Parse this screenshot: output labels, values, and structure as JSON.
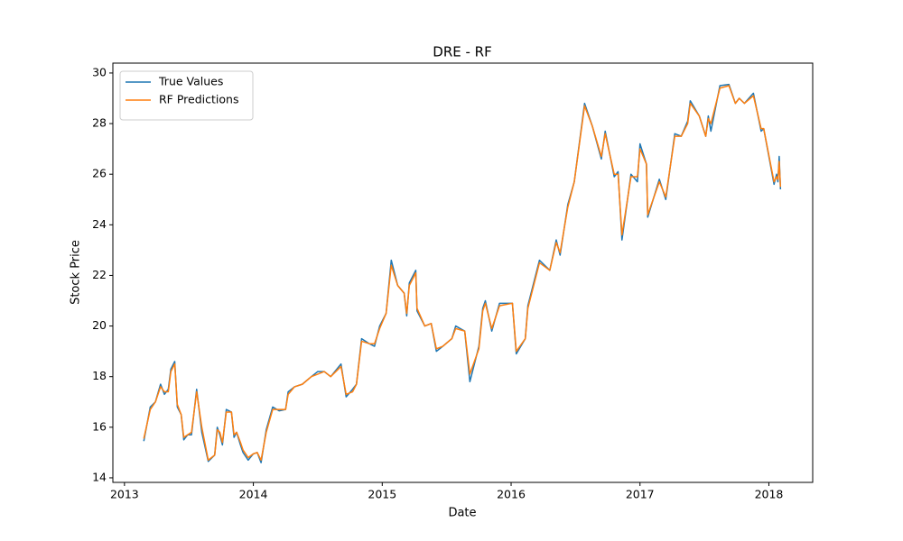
{
  "chart_data": {
    "type": "line",
    "title": "DRE - RF",
    "x_label": "Date",
    "y_label": "Stock Price",
    "x": [
      2013.15,
      2013.2,
      2013.24,
      2013.28,
      2013.31,
      2013.34,
      2013.36,
      2013.39,
      2013.41,
      2013.44,
      2013.46,
      2013.49,
      2013.52,
      2013.56,
      2013.6,
      2013.65,
      2013.7,
      2013.72,
      2013.74,
      2013.76,
      2013.79,
      2013.83,
      2013.85,
      2013.87,
      2013.9,
      2013.92,
      2013.96,
      2014.0,
      2014.03,
      2014.06,
      2014.1,
      2014.15,
      2014.2,
      2014.25,
      2014.27,
      2014.32,
      2014.38,
      2014.45,
      2014.5,
      2014.55,
      2014.6,
      2014.68,
      2014.72,
      2014.77,
      2014.8,
      2014.84,
      2014.9,
      2014.94,
      2014.98,
      2015.03,
      2015.07,
      2015.12,
      2015.17,
      2015.19,
      2015.21,
      2015.26,
      2015.27,
      2015.33,
      2015.38,
      2015.42,
      2015.47,
      2015.54,
      2015.57,
      2015.64,
      2015.68,
      2015.75,
      2015.78,
      2015.8,
      2015.85,
      2015.91,
      2016.01,
      2016.04,
      2016.11,
      2016.13,
      2016.22,
      2016.3,
      2016.35,
      2016.38,
      2016.44,
      2016.49,
      2016.57,
      2016.63,
      2016.7,
      2016.73,
      2016.8,
      2016.83,
      2016.86,
      2016.93,
      2016.98,
      2017.0,
      2017.05,
      2017.06,
      2017.15,
      2017.2,
      2017.27,
      2017.32,
      2017.37,
      2017.39,
      2017.46,
      2017.51,
      2017.53,
      2017.55,
      2017.62,
      2017.69,
      2017.74,
      2017.77,
      2017.81,
      2017.88,
      2017.94,
      2017.96,
      2018.04,
      2018.06,
      2018.07,
      2018.08,
      2018.09
    ],
    "series": [
      {
        "name": "True Values",
        "color": "#1f77b4",
        "values": [
          15.45,
          16.8,
          17.0,
          17.7,
          17.3,
          17.5,
          18.3,
          18.6,
          16.8,
          16.5,
          15.5,
          15.7,
          15.7,
          17.5,
          15.8,
          14.65,
          14.9,
          16.0,
          15.7,
          15.3,
          16.7,
          16.6,
          15.6,
          15.8,
          15.3,
          15.0,
          14.7,
          14.95,
          15.0,
          14.6,
          15.9,
          16.8,
          16.65,
          16.7,
          17.4,
          17.6,
          17.7,
          18.0,
          18.2,
          18.2,
          18.0,
          18.5,
          17.2,
          17.5,
          17.7,
          19.5,
          19.3,
          19.2,
          20.0,
          20.5,
          22.6,
          21.6,
          21.3,
          20.4,
          21.7,
          22.2,
          20.6,
          20.0,
          20.1,
          19.0,
          19.2,
          19.5,
          20.0,
          19.8,
          17.8,
          19.2,
          20.7,
          21.0,
          19.8,
          20.9,
          20.9,
          18.9,
          19.5,
          20.8,
          22.6,
          22.2,
          23.4,
          22.8,
          24.8,
          25.7,
          28.8,
          27.9,
          26.6,
          27.7,
          25.9,
          26.1,
          23.4,
          26.0,
          25.7,
          27.2,
          26.4,
          24.3,
          25.8,
          25.0,
          27.6,
          27.5,
          28.1,
          28.9,
          28.3,
          27.5,
          28.3,
          27.7,
          29.5,
          29.55,
          28.8,
          29.0,
          28.8,
          29.2,
          27.7,
          27.8,
          25.6,
          26.0,
          25.7,
          26.7,
          25.4
        ]
      },
      {
        "name": "RF Predictions",
        "color": "#ff7f0e",
        "values": [
          15.55,
          16.7,
          17.0,
          17.6,
          17.4,
          17.4,
          18.2,
          18.5,
          16.9,
          16.5,
          15.6,
          15.7,
          15.8,
          17.4,
          16.0,
          14.7,
          14.9,
          15.9,
          15.8,
          15.4,
          16.6,
          16.6,
          15.7,
          15.8,
          15.4,
          15.1,
          14.8,
          14.95,
          15.0,
          14.7,
          15.8,
          16.7,
          16.7,
          16.7,
          17.3,
          17.6,
          17.7,
          18.0,
          18.1,
          18.2,
          18.0,
          18.4,
          17.3,
          17.4,
          17.7,
          19.4,
          19.3,
          19.3,
          19.9,
          20.5,
          22.4,
          21.6,
          21.3,
          20.5,
          21.6,
          22.1,
          20.7,
          20.0,
          20.1,
          19.1,
          19.2,
          19.5,
          19.9,
          19.8,
          18.1,
          19.1,
          20.6,
          20.9,
          19.9,
          20.8,
          20.9,
          19.0,
          19.5,
          20.7,
          22.5,
          22.2,
          23.3,
          22.9,
          24.7,
          25.7,
          28.7,
          27.9,
          26.7,
          27.6,
          26.0,
          26.0,
          23.6,
          25.9,
          25.9,
          27.0,
          26.4,
          24.4,
          25.7,
          25.1,
          27.5,
          27.5,
          28.0,
          28.8,
          28.3,
          27.5,
          28.2,
          28.0,
          29.4,
          29.5,
          28.8,
          29.0,
          28.8,
          29.1,
          27.8,
          27.8,
          25.7,
          25.9,
          25.8,
          26.5,
          25.5
        ]
      }
    ],
    "xlim": [
      2012.91,
      2018.34
    ],
    "xticks": [
      2013,
      2014,
      2015,
      2016,
      2017,
      2018
    ],
    "ylim": [
      13.82,
      30.39
    ],
    "yticks": [
      14,
      16,
      18,
      20,
      22,
      24,
      26,
      28,
      30
    ],
    "grid": false,
    "legend": "upper left"
  }
}
